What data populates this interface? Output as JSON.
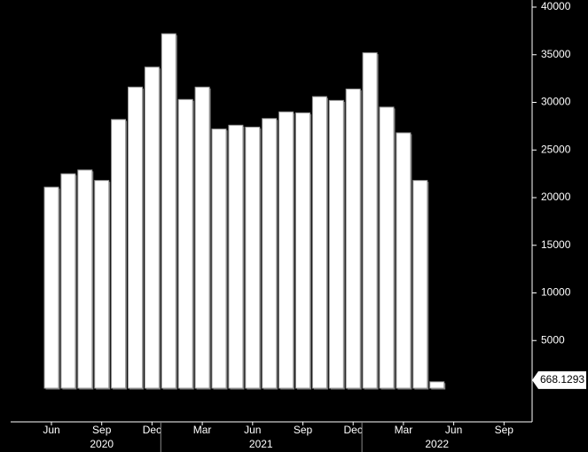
{
  "chart_data": {
    "type": "bar",
    "categories": [
      "Jun",
      null,
      null,
      "Sep",
      null,
      null,
      "Dec",
      null,
      null,
      "Mar",
      null,
      null,
      "Jun",
      null,
      null,
      "Sep",
      null,
      null,
      "Dec",
      null,
      null,
      "Mar",
      null,
      null,
      "Jun",
      null,
      null,
      "Sep"
    ],
    "values": [
      21100,
      22500,
      22900,
      21800,
      28200,
      31600,
      33700,
      37200,
      30300,
      31600,
      27200,
      27600,
      27400,
      28300,
      29000,
      28900,
      30600,
      30200,
      31400,
      35200,
      29500,
      26800,
      21800,
      668.1293,
      null,
      null,
      null,
      null
    ],
    "year_labels": [
      "2020",
      "2021",
      "2022"
    ],
    "color": "#ffffff",
    "ylim": [
      0,
      40000
    ],
    "yticks": [
      5000,
      10000,
      15000,
      20000,
      25000,
      30000,
      35000,
      40000
    ]
  }
}
